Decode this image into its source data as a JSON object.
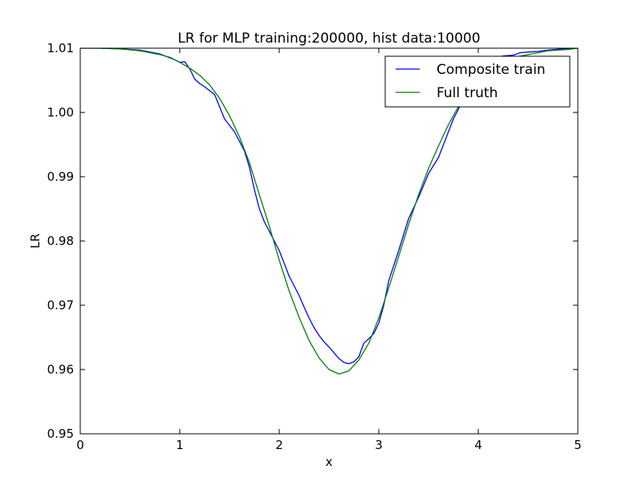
{
  "chart_data": {
    "type": "line",
    "title": "LR for MLP training:200000, hist data:10000",
    "xlabel": "x",
    "ylabel": "LR",
    "xlim": [
      0,
      5
    ],
    "ylim": [
      0.95,
      1.01
    ],
    "xticks": [
      0,
      1,
      2,
      3,
      4,
      5
    ],
    "xtick_labels": [
      "0",
      "1",
      "2",
      "3",
      "4",
      "5"
    ],
    "yticks": [
      0.95,
      0.96,
      0.97,
      0.98,
      0.99,
      1.0,
      1.01
    ],
    "ytick_labels": [
      "0.95",
      "0.96",
      "0.97",
      "0.98",
      "0.99",
      "1.00",
      "1.01"
    ],
    "grid": false,
    "legend_position": "top-right",
    "series": [
      {
        "name": "Composite train",
        "color": "#0000ff",
        "points": [
          [
            0.0,
            1.01
          ],
          [
            0.2,
            1.01
          ],
          [
            0.4,
            1.0099
          ],
          [
            0.6,
            1.0097
          ],
          [
            0.8,
            1.0091
          ],
          [
            0.95,
            1.0082
          ],
          [
            1.0,
            1.0078
          ],
          [
            1.05,
            1.0079
          ],
          [
            1.1,
            1.0068
          ],
          [
            1.15,
            1.0052
          ],
          [
            1.2,
            1.0045
          ],
          [
            1.25,
            1.004
          ],
          [
            1.35,
            1.0028
          ],
          [
            1.45,
            0.999
          ],
          [
            1.55,
            0.997
          ],
          [
            1.65,
            0.994
          ],
          [
            1.7,
            0.9915
          ],
          [
            1.75,
            0.988
          ],
          [
            1.8,
            0.985
          ],
          [
            1.85,
            0.983
          ],
          [
            1.9,
            0.9815
          ],
          [
            1.95,
            0.98
          ],
          [
            2.0,
            0.9785
          ],
          [
            2.05,
            0.9765
          ],
          [
            2.1,
            0.9745
          ],
          [
            2.15,
            0.973
          ],
          [
            2.2,
            0.9715
          ],
          [
            2.25,
            0.9697
          ],
          [
            2.3,
            0.968
          ],
          [
            2.35,
            0.9665
          ],
          [
            2.4,
            0.9653
          ],
          [
            2.45,
            0.9643
          ],
          [
            2.5,
            0.9635
          ],
          [
            2.55,
            0.9626
          ],
          [
            2.6,
            0.9617
          ],
          [
            2.65,
            0.9611
          ],
          [
            2.7,
            0.9609
          ],
          [
            2.75,
            0.9612
          ],
          [
            2.8,
            0.962
          ],
          [
            2.85,
            0.9641
          ],
          [
            2.9,
            0.9648
          ],
          [
            2.95,
            0.9656
          ],
          [
            3.0,
            0.9672
          ],
          [
            3.05,
            0.97
          ],
          [
            3.1,
            0.9738
          ],
          [
            3.2,
            0.9785
          ],
          [
            3.3,
            0.9835
          ],
          [
            3.4,
            0.9868
          ],
          [
            3.5,
            0.9905
          ],
          [
            3.6,
            0.993
          ],
          [
            3.75,
            0.999
          ],
          [
            3.85,
            1.002
          ],
          [
            3.95,
            1.005
          ],
          [
            4.05,
            1.007
          ],
          [
            4.15,
            1.0082
          ],
          [
            4.25,
            1.0088
          ],
          [
            4.35,
            1.0089
          ],
          [
            4.42,
            1.0093
          ],
          [
            4.5,
            1.0094
          ],
          [
            4.6,
            1.0095
          ],
          [
            4.7,
            1.0097
          ],
          [
            4.85,
            1.0099
          ],
          [
            5.0,
            1.01
          ]
        ]
      },
      {
        "name": "Full truth",
        "color": "#008000",
        "points": [
          [
            0.0,
            1.01
          ],
          [
            0.2,
            1.01
          ],
          [
            0.4,
            1.0099
          ],
          [
            0.6,
            1.0096
          ],
          [
            0.8,
            1.009
          ],
          [
            0.9,
            1.0086
          ],
          [
            1.0,
            1.0078
          ],
          [
            1.1,
            1.0069
          ],
          [
            1.2,
            1.0058
          ],
          [
            1.3,
            1.0043
          ],
          [
            1.4,
            1.0022
          ],
          [
            1.5,
            0.9995
          ],
          [
            1.6,
            0.9962
          ],
          [
            1.7,
            0.9922
          ],
          [
            1.8,
            0.9872
          ],
          [
            1.9,
            0.9823
          ],
          [
            2.0,
            0.977
          ],
          [
            2.1,
            0.9722
          ],
          [
            2.2,
            0.9681
          ],
          [
            2.3,
            0.9645
          ],
          [
            2.4,
            0.9618
          ],
          [
            2.5,
            0.96
          ],
          [
            2.6,
            0.9593
          ],
          [
            2.7,
            0.9598
          ],
          [
            2.8,
            0.9615
          ],
          [
            2.9,
            0.9641
          ],
          [
            3.0,
            0.968
          ],
          [
            3.1,
            0.9727
          ],
          [
            3.2,
            0.9776
          ],
          [
            3.3,
            0.9826
          ],
          [
            3.4,
            0.9872
          ],
          [
            3.5,
            0.9913
          ],
          [
            3.6,
            0.9948
          ],
          [
            3.7,
            0.9981
          ],
          [
            3.8,
            1.0009
          ],
          [
            3.9,
            1.0034
          ],
          [
            4.0,
            1.0052
          ],
          [
            4.1,
            1.0066
          ],
          [
            4.2,
            1.0077
          ],
          [
            4.3,
            1.0083
          ],
          [
            4.4,
            1.0087
          ],
          [
            4.5,
            1.009
          ],
          [
            4.6,
            1.0093
          ],
          [
            4.7,
            1.0096
          ],
          [
            4.8,
            1.0097
          ],
          [
            4.9,
            1.0098
          ],
          [
            5.0,
            1.01
          ]
        ]
      }
    ]
  }
}
